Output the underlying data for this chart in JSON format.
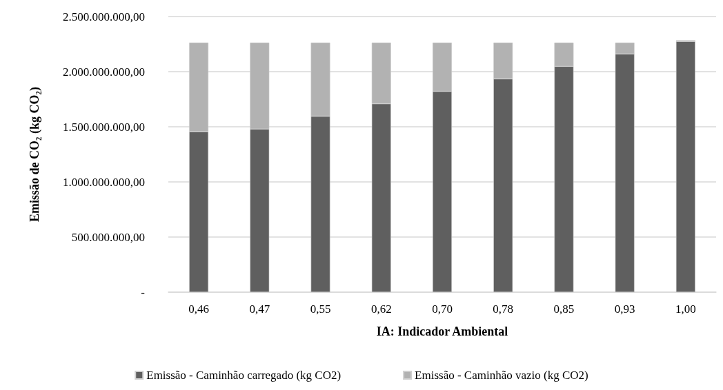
{
  "chart_data": {
    "type": "bar",
    "stacked": true,
    "xlabel": "IA: Indicador Ambiental",
    "ylabel": "Emissão de CO₂ (kg CO₂)",
    "categories": [
      "0,46",
      "0,47",
      "0,55",
      "0,62",
      "0,70",
      "0,78",
      "0,85",
      "0,93",
      "1,00"
    ],
    "series": [
      {
        "name": "Emissão - Caminhão carregado (kg CO2)",
        "color": "#5f5f5f",
        "values": [
          1457000000,
          1480000000,
          1596000000,
          1709000000,
          1822000000,
          1935000000,
          2048000000,
          2161000000,
          2274000000
        ]
      },
      {
        "name": "Emissão - Caminhão vazio (kg CO2)",
        "color": "#b2b2b2",
        "values": [
          807000000,
          784000000,
          668000000,
          555000000,
          442000000,
          329000000,
          216000000,
          103000000,
          11000000
        ]
      }
    ],
    "ylim": [
      0,
      2500000000
    ],
    "yticks": [
      {
        "value": 0,
        "label": "-"
      },
      {
        "value": 500000000,
        "label": "500.000.000,00"
      },
      {
        "value": 1000000000,
        "label": "1.000.000.000,00"
      },
      {
        "value": 1500000000,
        "label": "1.500.000.000,00"
      },
      {
        "value": 2000000000,
        "label": "2.000.000.000,00"
      },
      {
        "value": 2500000000,
        "label": "2.500.000.000,00"
      }
    ],
    "grid": "y",
    "legend": "bottom"
  }
}
